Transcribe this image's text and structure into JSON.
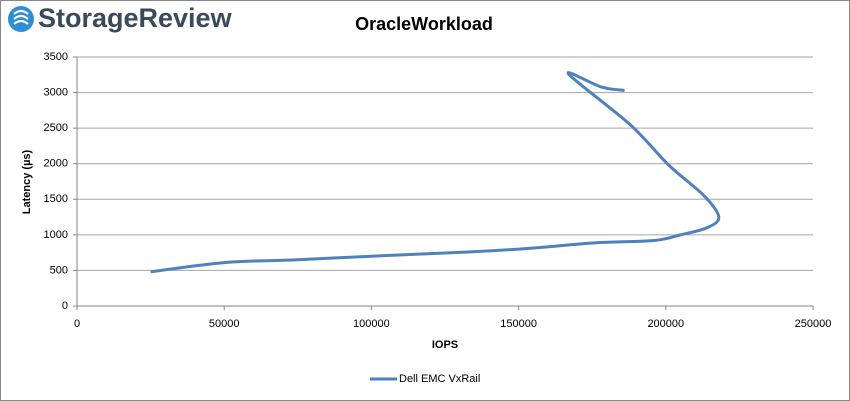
{
  "brand": "StorageReview",
  "chart_data": {
    "type": "line",
    "title": "OracleWorkload",
    "x_label": "IOPS",
    "y_label": "Latency (µs)",
    "x": [
      25000,
      50000,
      75000,
      100000,
      125000,
      150000,
      177000,
      196000,
      205000,
      214000,
      218000,
      213000,
      201000,
      188000,
      167000,
      178000,
      186000
    ],
    "series": [
      {
        "name": "Dell EMC VxRail",
        "color": "#4f81bd",
        "values": [
          480,
          610,
          650,
          700,
          745,
          800,
          890,
          920,
          1000,
          1100,
          1250,
          1550,
          1980,
          2545,
          3260,
          3080,
          3030
        ]
      }
    ],
    "xlim": [
      0,
      250000
    ],
    "xticks": [
      0,
      50000,
      100000,
      150000,
      200000,
      250000
    ],
    "ylim": [
      0,
      3500
    ],
    "yticks": [
      0,
      500,
      1000,
      1500,
      2000,
      2500,
      3000,
      3500
    ],
    "grid": true,
    "legend": "bottom"
  }
}
